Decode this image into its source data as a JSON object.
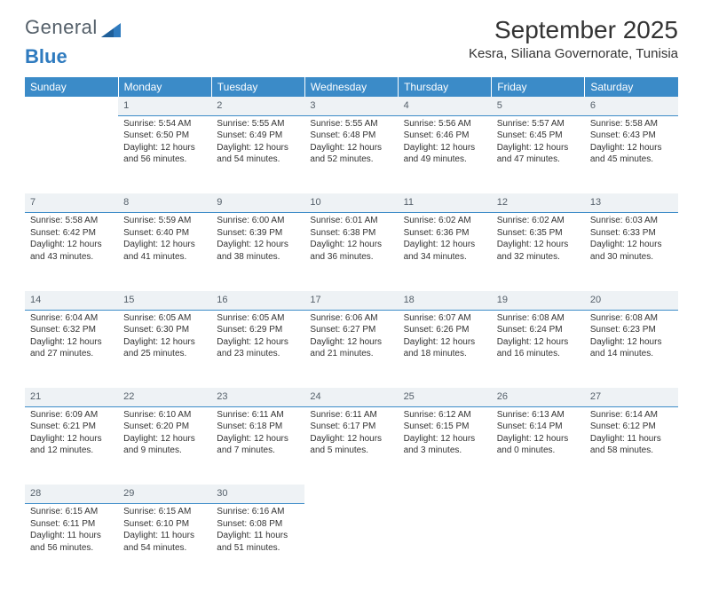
{
  "logo": {
    "text1": "General",
    "text2": "Blue"
  },
  "title": "September 2025",
  "location": "Kesra, Siliana Governorate, Tunisia",
  "colors": {
    "header_bg": "#3b8bc8",
    "header_text": "#ffffff",
    "daynum_bg": "#eef2f5",
    "daynum_border": "#3b8bc8",
    "text": "#333333",
    "logo_gray": "#55606a",
    "logo_blue": "#2f7bbf",
    "page_bg": "#ffffff"
  },
  "typography": {
    "title_fontsize": 28,
    "location_fontsize": 15,
    "th_fontsize": 12,
    "cell_fontsize": 10,
    "daynum_fontsize": 11,
    "font_family": "Arial"
  },
  "weekdays": [
    "Sunday",
    "Monday",
    "Tuesday",
    "Wednesday",
    "Thursday",
    "Friday",
    "Saturday"
  ],
  "weeks": [
    {
      "nums": [
        "",
        "1",
        "2",
        "3",
        "4",
        "5",
        "6"
      ],
      "cells": [
        {
          "empty": true
        },
        {
          "sunrise": "Sunrise: 5:54 AM",
          "sunset": "Sunset: 6:50 PM",
          "day1": "Daylight: 12 hours",
          "day2": "and 56 minutes."
        },
        {
          "sunrise": "Sunrise: 5:55 AM",
          "sunset": "Sunset: 6:49 PM",
          "day1": "Daylight: 12 hours",
          "day2": "and 54 minutes."
        },
        {
          "sunrise": "Sunrise: 5:55 AM",
          "sunset": "Sunset: 6:48 PM",
          "day1": "Daylight: 12 hours",
          "day2": "and 52 minutes."
        },
        {
          "sunrise": "Sunrise: 5:56 AM",
          "sunset": "Sunset: 6:46 PM",
          "day1": "Daylight: 12 hours",
          "day2": "and 49 minutes."
        },
        {
          "sunrise": "Sunrise: 5:57 AM",
          "sunset": "Sunset: 6:45 PM",
          "day1": "Daylight: 12 hours",
          "day2": "and 47 minutes."
        },
        {
          "sunrise": "Sunrise: 5:58 AM",
          "sunset": "Sunset: 6:43 PM",
          "day1": "Daylight: 12 hours",
          "day2": "and 45 minutes."
        }
      ]
    },
    {
      "nums": [
        "7",
        "8",
        "9",
        "10",
        "11",
        "12",
        "13"
      ],
      "cells": [
        {
          "sunrise": "Sunrise: 5:58 AM",
          "sunset": "Sunset: 6:42 PM",
          "day1": "Daylight: 12 hours",
          "day2": "and 43 minutes."
        },
        {
          "sunrise": "Sunrise: 5:59 AM",
          "sunset": "Sunset: 6:40 PM",
          "day1": "Daylight: 12 hours",
          "day2": "and 41 minutes."
        },
        {
          "sunrise": "Sunrise: 6:00 AM",
          "sunset": "Sunset: 6:39 PM",
          "day1": "Daylight: 12 hours",
          "day2": "and 38 minutes."
        },
        {
          "sunrise": "Sunrise: 6:01 AM",
          "sunset": "Sunset: 6:38 PM",
          "day1": "Daylight: 12 hours",
          "day2": "and 36 minutes."
        },
        {
          "sunrise": "Sunrise: 6:02 AM",
          "sunset": "Sunset: 6:36 PM",
          "day1": "Daylight: 12 hours",
          "day2": "and 34 minutes."
        },
        {
          "sunrise": "Sunrise: 6:02 AM",
          "sunset": "Sunset: 6:35 PM",
          "day1": "Daylight: 12 hours",
          "day2": "and 32 minutes."
        },
        {
          "sunrise": "Sunrise: 6:03 AM",
          "sunset": "Sunset: 6:33 PM",
          "day1": "Daylight: 12 hours",
          "day2": "and 30 minutes."
        }
      ]
    },
    {
      "nums": [
        "14",
        "15",
        "16",
        "17",
        "18",
        "19",
        "20"
      ],
      "cells": [
        {
          "sunrise": "Sunrise: 6:04 AM",
          "sunset": "Sunset: 6:32 PM",
          "day1": "Daylight: 12 hours",
          "day2": "and 27 minutes."
        },
        {
          "sunrise": "Sunrise: 6:05 AM",
          "sunset": "Sunset: 6:30 PM",
          "day1": "Daylight: 12 hours",
          "day2": "and 25 minutes."
        },
        {
          "sunrise": "Sunrise: 6:05 AM",
          "sunset": "Sunset: 6:29 PM",
          "day1": "Daylight: 12 hours",
          "day2": "and 23 minutes."
        },
        {
          "sunrise": "Sunrise: 6:06 AM",
          "sunset": "Sunset: 6:27 PM",
          "day1": "Daylight: 12 hours",
          "day2": "and 21 minutes."
        },
        {
          "sunrise": "Sunrise: 6:07 AM",
          "sunset": "Sunset: 6:26 PM",
          "day1": "Daylight: 12 hours",
          "day2": "and 18 minutes."
        },
        {
          "sunrise": "Sunrise: 6:08 AM",
          "sunset": "Sunset: 6:24 PM",
          "day1": "Daylight: 12 hours",
          "day2": "and 16 minutes."
        },
        {
          "sunrise": "Sunrise: 6:08 AM",
          "sunset": "Sunset: 6:23 PM",
          "day1": "Daylight: 12 hours",
          "day2": "and 14 minutes."
        }
      ]
    },
    {
      "nums": [
        "21",
        "22",
        "23",
        "24",
        "25",
        "26",
        "27"
      ],
      "cells": [
        {
          "sunrise": "Sunrise: 6:09 AM",
          "sunset": "Sunset: 6:21 PM",
          "day1": "Daylight: 12 hours",
          "day2": "and 12 minutes."
        },
        {
          "sunrise": "Sunrise: 6:10 AM",
          "sunset": "Sunset: 6:20 PM",
          "day1": "Daylight: 12 hours",
          "day2": "and 9 minutes."
        },
        {
          "sunrise": "Sunrise: 6:11 AM",
          "sunset": "Sunset: 6:18 PM",
          "day1": "Daylight: 12 hours",
          "day2": "and 7 minutes."
        },
        {
          "sunrise": "Sunrise: 6:11 AM",
          "sunset": "Sunset: 6:17 PM",
          "day1": "Daylight: 12 hours",
          "day2": "and 5 minutes."
        },
        {
          "sunrise": "Sunrise: 6:12 AM",
          "sunset": "Sunset: 6:15 PM",
          "day1": "Daylight: 12 hours",
          "day2": "and 3 minutes."
        },
        {
          "sunrise": "Sunrise: 6:13 AM",
          "sunset": "Sunset: 6:14 PM",
          "day1": "Daylight: 12 hours",
          "day2": "and 0 minutes."
        },
        {
          "sunrise": "Sunrise: 6:14 AM",
          "sunset": "Sunset: 6:12 PM",
          "day1": "Daylight: 11 hours",
          "day2": "and 58 minutes."
        }
      ]
    },
    {
      "nums": [
        "28",
        "29",
        "30",
        "",
        "",
        "",
        ""
      ],
      "cells": [
        {
          "sunrise": "Sunrise: 6:15 AM",
          "sunset": "Sunset: 6:11 PM",
          "day1": "Daylight: 11 hours",
          "day2": "and 56 minutes."
        },
        {
          "sunrise": "Sunrise: 6:15 AM",
          "sunset": "Sunset: 6:10 PM",
          "day1": "Daylight: 11 hours",
          "day2": "and 54 minutes."
        },
        {
          "sunrise": "Sunrise: 6:16 AM",
          "sunset": "Sunset: 6:08 PM",
          "day1": "Daylight: 11 hours",
          "day2": "and 51 minutes."
        },
        {
          "empty": true
        },
        {
          "empty": true
        },
        {
          "empty": true
        },
        {
          "empty": true
        }
      ]
    }
  ]
}
